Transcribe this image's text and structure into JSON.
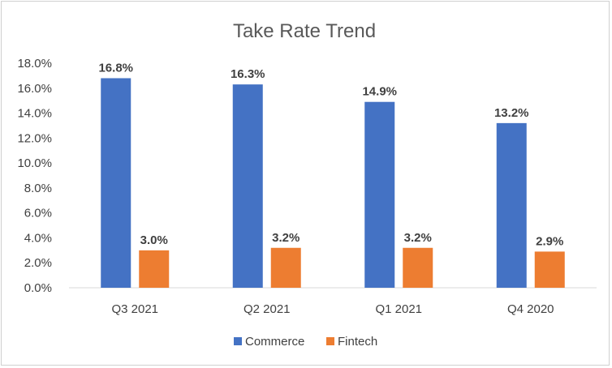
{
  "chart_data": {
    "type": "bar",
    "title": "Take Rate Trend",
    "categories": [
      "Q3 2021",
      "Q2 2021",
      "Q1 2021",
      "Q4 2020"
    ],
    "series": [
      {
        "name": "Commerce",
        "color": "#4472C4",
        "values": [
          16.8,
          16.3,
          14.9,
          13.2
        ],
        "labels": [
          "16.8%",
          "16.3%",
          "14.9%",
          "13.2%"
        ]
      },
      {
        "name": "Fintech",
        "color": "#ED7D31",
        "values": [
          3.0,
          3.2,
          3.2,
          2.9
        ],
        "labels": [
          "3.0%",
          "3.2%",
          "3.2%",
          "2.9%"
        ]
      }
    ],
    "ylim": [
      0,
      18
    ],
    "yticks": [
      "0.0%",
      "2.0%",
      "4.0%",
      "6.0%",
      "8.0%",
      "10.0%",
      "12.0%",
      "14.0%",
      "16.0%",
      "18.0%"
    ],
    "grid": false,
    "legend": "bottom"
  }
}
